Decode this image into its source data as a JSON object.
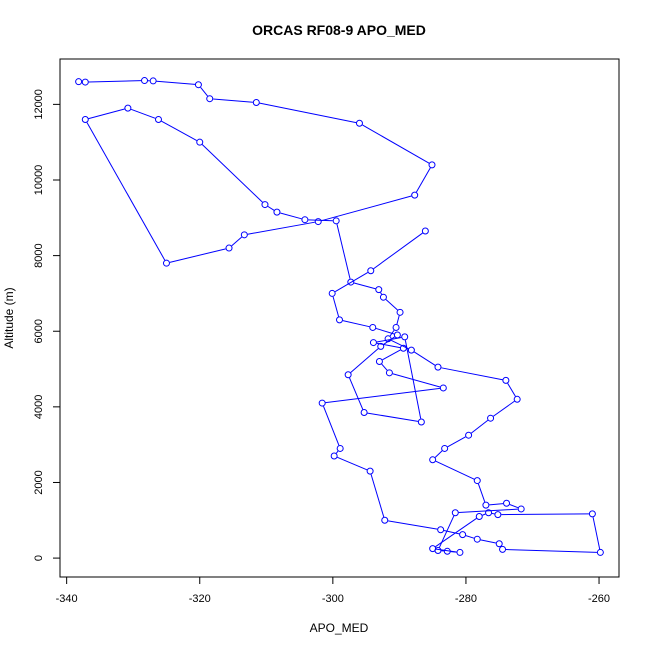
{
  "chart_data": {
    "type": "line",
    "title": "ORCAS RF08-9 APO_MED",
    "xlabel": "APO_MED",
    "ylabel": "Altitude (m)",
    "xlim": [
      -341,
      -257
    ],
    "ylim": [
      -500,
      13200
    ],
    "xticks": [
      "-340",
      "-320",
      "-300",
      "-280",
      "-260"
    ],
    "yticks": [
      "0",
      "2000",
      "4000",
      "6000",
      "8000",
      "10000",
      "12000"
    ],
    "grid": false,
    "legend": "none",
    "series_color": "#0000ff",
    "series": [
      {
        "x": [
          -338.2,
          -337.2,
          -328.3,
          -327.0,
          -320.2,
          -318.5,
          -311.5,
          -296.0,
          -285.1,
          -287.7,
          -302.2,
          -313.3,
          -315.6,
          -325.0,
          -337.2,
          -330.8,
          -326.2,
          -320.0,
          -310.2,
          -308.4,
          -304.2,
          -299.5,
          -297.3,
          -293.1,
          -292.4,
          -289.9,
          -290.5,
          -291.7,
          -288.2,
          -284.2,
          -274.0,
          -272.3,
          -276.3,
          -279.6,
          -283.2,
          -285.0,
          -278.3,
          -277.0,
          -273.9,
          -271.7,
          -281.6,
          -284.2,
          -282.8,
          -280.9,
          -285.0,
          -278.0,
          -276.6,
          -275.2,
          -261.0,
          -259.8,
          -274.5,
          -275.0,
          -278.3,
          -280.5,
          -283.8,
          -292.2,
          -294.4,
          -299.8,
          -298.9,
          -301.6,
          -283.4,
          -291.5,
          -293.0,
          -289.4,
          -293.9,
          -289.2,
          -286.7,
          -295.3,
          -297.7,
          -292.8,
          -290.3,
          -294.0,
          -299.0,
          -300.1,
          -294.3,
          -286.1
        ],
        "y": [
          12600,
          12590,
          12630,
          12620,
          12520,
          12150,
          12050,
          11500,
          10400,
          9600,
          8900,
          8550,
          8200,
          7800,
          11600,
          11900,
          11600,
          11000,
          9350,
          9150,
          8950,
          8920,
          7300,
          7100,
          6900,
          6500,
          6100,
          5800,
          5500,
          5050,
          4700,
          4200,
          3700,
          3250,
          2900,
          2600,
          2050,
          1400,
          1450,
          1300,
          1200,
          200,
          180,
          150,
          250,
          1100,
          1200,
          1150,
          1170,
          150,
          230,
          380,
          500,
          620,
          750,
          1000,
          2300,
          2700,
          2900,
          4100,
          4500,
          4900,
          5200,
          5550,
          5700,
          5850,
          3600,
          3850,
          4850,
          5600,
          5900,
          6100,
          6300,
          7000,
          7600,
          8650
        ]
      }
    ]
  }
}
